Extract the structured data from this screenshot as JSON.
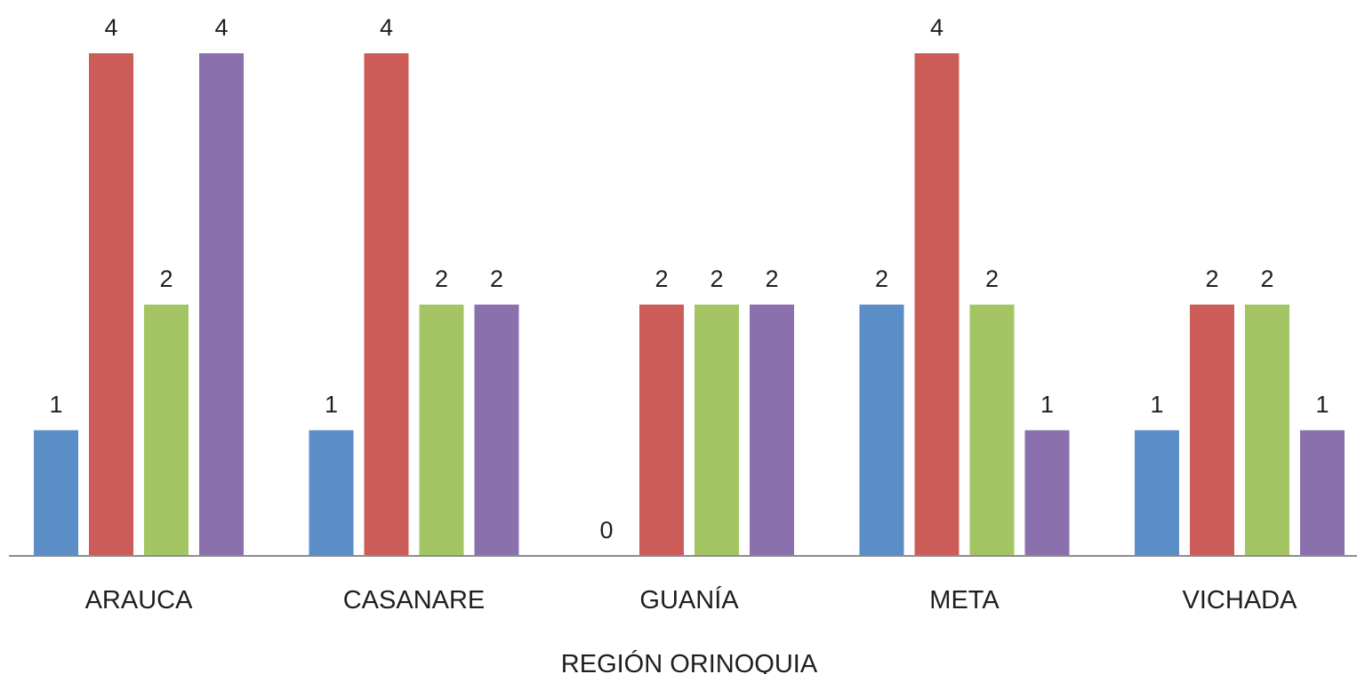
{
  "chart_data": {
    "type": "bar",
    "xlabel": "REGIÓN ORINOQUIA",
    "ylabel": "",
    "ylim": [
      0,
      4
    ],
    "grid": false,
    "legend": "none",
    "categories": [
      "ARAUCA",
      "CASANARE",
      "GUANÍA",
      "META",
      "VICHADA"
    ],
    "series": [
      {
        "color": "#5b8ec7",
        "values": [
          1,
          1,
          0,
          2,
          1
        ]
      },
      {
        "color": "#cc5c58",
        "values": [
          4,
          4,
          2,
          4,
          2
        ]
      },
      {
        "color": "#a3c564",
        "values": [
          2,
          2,
          2,
          2,
          2
        ]
      },
      {
        "color": "#8a70ad",
        "values": [
          4,
          2,
          2,
          1,
          1
        ]
      }
    ]
  }
}
